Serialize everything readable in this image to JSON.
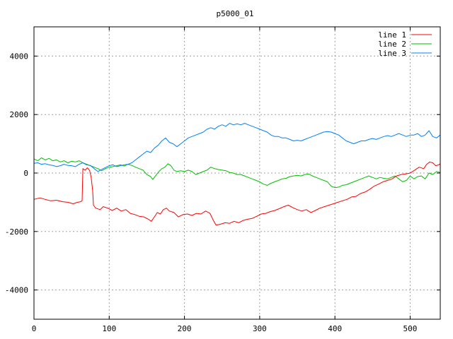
{
  "chart_data": {
    "type": "line",
    "title": "p5000_01",
    "xlabel": "",
    "ylabel": "",
    "xlim": [
      0,
      540
    ],
    "ylim": [
      -5000,
      5000
    ],
    "xticks": [
      0,
      100,
      200,
      300,
      400,
      500
    ],
    "yticks": [
      -4000,
      -2000,
      0,
      2000,
      4000
    ],
    "grid": true,
    "legend_position": "top-right",
    "series": [
      {
        "name": "line 1",
        "color": "#ff0000",
        "points": [
          [
            0,
            -900
          ],
          [
            8,
            -850
          ],
          [
            15,
            -900
          ],
          [
            22,
            -950
          ],
          [
            30,
            -930
          ],
          [
            38,
            -980
          ],
          [
            45,
            -1000
          ],
          [
            52,
            -1050
          ],
          [
            58,
            -1000
          ],
          [
            62,
            -980
          ],
          [
            64,
            -950
          ],
          [
            65,
            150
          ],
          [
            68,
            100
          ],
          [
            71,
            180
          ],
          [
            74,
            80
          ],
          [
            76,
            -150
          ],
          [
            78,
            -600
          ],
          [
            79,
            -1100
          ],
          [
            82,
            -1200
          ],
          [
            88,
            -1250
          ],
          [
            92,
            -1150
          ],
          [
            98,
            -1200
          ],
          [
            104,
            -1280
          ],
          [
            110,
            -1200
          ],
          [
            116,
            -1300
          ],
          [
            122,
            -1250
          ],
          [
            128,
            -1380
          ],
          [
            134,
            -1420
          ],
          [
            140,
            -1480
          ],
          [
            146,
            -1500
          ],
          [
            152,
            -1580
          ],
          [
            156,
            -1650
          ],
          [
            160,
            -1500
          ],
          [
            164,
            -1350
          ],
          [
            168,
            -1400
          ],
          [
            172,
            -1250
          ],
          [
            176,
            -1200
          ],
          [
            180,
            -1300
          ],
          [
            186,
            -1350
          ],
          [
            192,
            -1500
          ],
          [
            198,
            -1420
          ],
          [
            204,
            -1400
          ],
          [
            210,
            -1450
          ],
          [
            216,
            -1380
          ],
          [
            222,
            -1400
          ],
          [
            228,
            -1300
          ],
          [
            234,
            -1380
          ],
          [
            238,
            -1600
          ],
          [
            242,
            -1780
          ],
          [
            248,
            -1750
          ],
          [
            254,
            -1700
          ],
          [
            260,
            -1720
          ],
          [
            266,
            -1650
          ],
          [
            272,
            -1700
          ],
          [
            278,
            -1620
          ],
          [
            284,
            -1580
          ],
          [
            290,
            -1550
          ],
          [
            296,
            -1480
          ],
          [
            302,
            -1400
          ],
          [
            308,
            -1380
          ],
          [
            314,
            -1320
          ],
          [
            320,
            -1280
          ],
          [
            326,
            -1220
          ],
          [
            332,
            -1150
          ],
          [
            338,
            -1100
          ],
          [
            344,
            -1180
          ],
          [
            350,
            -1250
          ],
          [
            356,
            -1300
          ],
          [
            362,
            -1250
          ],
          [
            368,
            -1350
          ],
          [
            374,
            -1280
          ],
          [
            380,
            -1200
          ],
          [
            386,
            -1150
          ],
          [
            392,
            -1100
          ],
          [
            398,
            -1050
          ],
          [
            404,
            -1000
          ],
          [
            410,
            -950
          ],
          [
            416,
            -900
          ],
          [
            422,
            -820
          ],
          [
            428,
            -800
          ],
          [
            434,
            -700
          ],
          [
            440,
            -650
          ],
          [
            446,
            -560
          ],
          [
            452,
            -450
          ],
          [
            458,
            -380
          ],
          [
            464,
            -300
          ],
          [
            470,
            -250
          ],
          [
            476,
            -200
          ],
          [
            482,
            -100
          ],
          [
            488,
            -50
          ],
          [
            494,
            -30
          ],
          [
            500,
            0
          ],
          [
            506,
            100
          ],
          [
            512,
            200
          ],
          [
            518,
            150
          ],
          [
            522,
            300
          ],
          [
            526,
            380
          ],
          [
            530,
            350
          ],
          [
            534,
            250
          ],
          [
            538,
            280
          ],
          [
            540,
            320
          ]
        ]
      },
      {
        "name": "line 2",
        "color": "#00c000",
        "points": [
          [
            0,
            480
          ],
          [
            5,
            420
          ],
          [
            10,
            520
          ],
          [
            15,
            450
          ],
          [
            20,
            500
          ],
          [
            25,
            420
          ],
          [
            30,
            450
          ],
          [
            35,
            380
          ],
          [
            40,
            420
          ],
          [
            45,
            350
          ],
          [
            50,
            400
          ],
          [
            55,
            380
          ],
          [
            60,
            420
          ],
          [
            65,
            350
          ],
          [
            70,
            300
          ],
          [
            75,
            250
          ],
          [
            80,
            200
          ],
          [
            85,
            150
          ],
          [
            90,
            80
          ],
          [
            95,
            150
          ],
          [
            100,
            200
          ],
          [
            105,
            220
          ],
          [
            110,
            250
          ],
          [
            115,
            280
          ],
          [
            120,
            240
          ],
          [
            125,
            300
          ],
          [
            130,
            260
          ],
          [
            135,
            200
          ],
          [
            140,
            150
          ],
          [
            145,
            100
          ],
          [
            150,
            -50
          ],
          [
            155,
            -120
          ],
          [
            158,
            -220
          ],
          [
            162,
            -80
          ],
          [
            166,
            50
          ],
          [
            170,
            150
          ],
          [
            174,
            200
          ],
          [
            178,
            320
          ],
          [
            182,
            250
          ],
          [
            186,
            100
          ],
          [
            190,
            50
          ],
          [
            195,
            80
          ],
          [
            200,
            50
          ],
          [
            205,
            100
          ],
          [
            210,
            50
          ],
          [
            215,
            -50
          ],
          [
            220,
            0
          ],
          [
            225,
            50
          ],
          [
            230,
            100
          ],
          [
            235,
            200
          ],
          [
            240,
            150
          ],
          [
            245,
            120
          ],
          [
            250,
            100
          ],
          [
            255,
            80
          ],
          [
            260,
            20
          ],
          [
            265,
            0
          ],
          [
            270,
            -50
          ],
          [
            275,
            -50
          ],
          [
            280,
            -100
          ],
          [
            285,
            -150
          ],
          [
            290,
            -200
          ],
          [
            295,
            -250
          ],
          [
            300,
            -300
          ],
          [
            305,
            -380
          ],
          [
            310,
            -420
          ],
          [
            315,
            -350
          ],
          [
            320,
            -300
          ],
          [
            325,
            -250
          ],
          [
            330,
            -200
          ],
          [
            335,
            -180
          ],
          [
            340,
            -120
          ],
          [
            345,
            -100
          ],
          [
            350,
            -80
          ],
          [
            355,
            -100
          ],
          [
            360,
            -50
          ],
          [
            365,
            -30
          ],
          [
            370,
            -100
          ],
          [
            375,
            -150
          ],
          [
            380,
            -200
          ],
          [
            385,
            -250
          ],
          [
            390,
            -300
          ],
          [
            395,
            -450
          ],
          [
            400,
            -500
          ],
          [
            405,
            -480
          ],
          [
            410,
            -420
          ],
          [
            415,
            -400
          ],
          [
            420,
            -350
          ],
          [
            425,
            -300
          ],
          [
            430,
            -250
          ],
          [
            435,
            -200
          ],
          [
            440,
            -150
          ],
          [
            445,
            -100
          ],
          [
            450,
            -150
          ],
          [
            455,
            -200
          ],
          [
            460,
            -150
          ],
          [
            465,
            -180
          ],
          [
            470,
            -200
          ],
          [
            475,
            -150
          ],
          [
            480,
            -100
          ],
          [
            485,
            -200
          ],
          [
            490,
            -300
          ],
          [
            495,
            -250
          ],
          [
            500,
            -100
          ],
          [
            505,
            -200
          ],
          [
            510,
            -120
          ],
          [
            515,
            -100
          ],
          [
            520,
            -200
          ],
          [
            525,
            0
          ],
          [
            530,
            -50
          ],
          [
            535,
            50
          ],
          [
            540,
            20
          ]
        ]
      },
      {
        "name": "line 3",
        "color": "#0080ff",
        "points": [
          [
            0,
            330
          ],
          [
            5,
            350
          ],
          [
            10,
            300
          ],
          [
            15,
            320
          ],
          [
            20,
            280
          ],
          [
            25,
            260
          ],
          [
            30,
            220
          ],
          [
            35,
            250
          ],
          [
            40,
            300
          ],
          [
            45,
            260
          ],
          [
            50,
            250
          ],
          [
            55,
            220
          ],
          [
            60,
            300
          ],
          [
            65,
            350
          ],
          [
            70,
            280
          ],
          [
            75,
            260
          ],
          [
            80,
            150
          ],
          [
            85,
            50
          ],
          [
            88,
            100
          ],
          [
            92,
            150
          ],
          [
            96,
            200
          ],
          [
            100,
            250
          ],
          [
            105,
            280
          ],
          [
            110,
            220
          ],
          [
            115,
            250
          ],
          [
            120,
            280
          ],
          [
            125,
            300
          ],
          [
            130,
            350
          ],
          [
            135,
            450
          ],
          [
            140,
            550
          ],
          [
            145,
            650
          ],
          [
            150,
            750
          ],
          [
            155,
            700
          ],
          [
            160,
            850
          ],
          [
            165,
            950
          ],
          [
            170,
            1100
          ],
          [
            175,
            1200
          ],
          [
            180,
            1050
          ],
          [
            185,
            1000
          ],
          [
            190,
            900
          ],
          [
            195,
            1000
          ],
          [
            200,
            1100
          ],
          [
            205,
            1200
          ],
          [
            210,
            1250
          ],
          [
            215,
            1300
          ],
          [
            220,
            1350
          ],
          [
            225,
            1400
          ],
          [
            230,
            1500
          ],
          [
            235,
            1550
          ],
          [
            240,
            1500
          ],
          [
            245,
            1600
          ],
          [
            250,
            1650
          ],
          [
            255,
            1600
          ],
          [
            260,
            1700
          ],
          [
            265,
            1650
          ],
          [
            270,
            1680
          ],
          [
            275,
            1650
          ],
          [
            280,
            1700
          ],
          [
            285,
            1650
          ],
          [
            290,
            1600
          ],
          [
            295,
            1550
          ],
          [
            300,
            1500
          ],
          [
            305,
            1450
          ],
          [
            310,
            1400
          ],
          [
            315,
            1300
          ],
          [
            320,
            1250
          ],
          [
            325,
            1250
          ],
          [
            330,
            1200
          ],
          [
            335,
            1200
          ],
          [
            340,
            1150
          ],
          [
            345,
            1100
          ],
          [
            350,
            1120
          ],
          [
            355,
            1100
          ],
          [
            360,
            1150
          ],
          [
            365,
            1200
          ],
          [
            370,
            1250
          ],
          [
            375,
            1300
          ],
          [
            380,
            1350
          ],
          [
            385,
            1400
          ],
          [
            390,
            1420
          ],
          [
            395,
            1400
          ],
          [
            400,
            1350
          ],
          [
            405,
            1300
          ],
          [
            410,
            1200
          ],
          [
            415,
            1100
          ],
          [
            420,
            1050
          ],
          [
            425,
            1000
          ],
          [
            430,
            1050
          ],
          [
            435,
            1100
          ],
          [
            440,
            1100
          ],
          [
            445,
            1150
          ],
          [
            450,
            1180
          ],
          [
            455,
            1150
          ],
          [
            460,
            1200
          ],
          [
            465,
            1250
          ],
          [
            470,
            1280
          ],
          [
            475,
            1250
          ],
          [
            480,
            1300
          ],
          [
            485,
            1350
          ],
          [
            490,
            1300
          ],
          [
            495,
            1250
          ],
          [
            500,
            1300
          ],
          [
            505,
            1300
          ],
          [
            510,
            1350
          ],
          [
            515,
            1250
          ],
          [
            520,
            1300
          ],
          [
            525,
            1450
          ],
          [
            530,
            1250
          ],
          [
            535,
            1200
          ],
          [
            540,
            1300
          ]
        ]
      }
    ]
  }
}
